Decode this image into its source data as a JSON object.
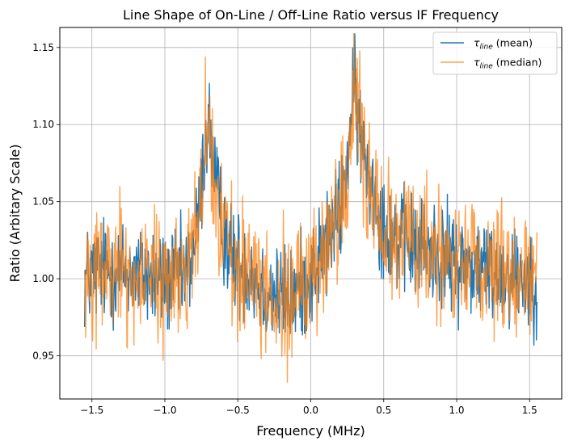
{
  "chart_data": {
    "type": "line",
    "title": "Line Shape of On-Line / Off-Line Ratio versus IF Frequency",
    "xlabel": "Frequency (MHz)",
    "ylabel": "Ratio (Arbitary Scale)",
    "xlim": [
      -1.72,
      1.72
    ],
    "ylim": [
      0.922,
      1.163
    ],
    "xticks": [
      -1.5,
      -1.0,
      -0.5,
      0.0,
      0.5,
      1.0,
      1.5
    ],
    "xtick_labels": [
      "−1.5",
      "−1.0",
      "−0.5",
      "0.0",
      "0.5",
      "1.0",
      "1.5"
    ],
    "yticks": [
      0.95,
      1.0,
      1.05,
      1.1,
      1.15
    ],
    "ytick_labels": [
      "0.95",
      "1.00",
      "1.05",
      "1.10",
      "1.15"
    ],
    "grid": true,
    "legend_position": "top-right",
    "series": [
      {
        "name": "τline (mean)",
        "name_symbol": "τ",
        "name_subscript": "line",
        "name_suffix": " (mean)",
        "color": "#1f77b4",
        "x": [
          -1.55,
          -1.45,
          -1.35,
          -1.25,
          -1.15,
          -1.05,
          -0.95,
          -0.85,
          -0.78,
          -0.74,
          -0.72,
          -0.7,
          -0.68,
          -0.65,
          -0.62,
          -0.58,
          -0.55,
          -0.5,
          -0.45,
          -0.4,
          -0.35,
          -0.3,
          -0.25,
          -0.2,
          -0.15,
          -0.1,
          -0.05,
          0.0,
          0.05,
          0.1,
          0.15,
          0.2,
          0.23,
          0.26,
          0.28,
          0.3,
          0.32,
          0.35,
          0.4,
          0.45,
          0.5,
          0.55,
          0.6,
          0.7,
          0.8,
          0.9,
          1.0,
          1.1,
          1.2,
          1.3,
          1.4,
          1.5,
          1.55
        ],
        "y": [
          1.0,
          1.006,
          1.005,
          1.004,
          1.003,
          0.999,
          0.998,
          1.003,
          1.03,
          1.07,
          1.095,
          1.1,
          1.085,
          1.06,
          1.04,
          1.028,
          1.015,
          1.01,
          1.007,
          1.005,
          0.995,
          0.992,
          0.99,
          0.988,
          0.986,
          0.99,
          0.996,
          1.002,
          1.012,
          1.022,
          1.03,
          1.045,
          1.06,
          1.085,
          1.11,
          1.12,
          1.11,
          1.085,
          1.07,
          1.05,
          1.035,
          1.03,
          1.025,
          1.02,
          1.018,
          1.015,
          1.01,
          1.008,
          1.006,
          1.004,
          1.003,
          1.001,
          1.001
        ]
      },
      {
        "name": "τline (median)",
        "name_symbol": "τ",
        "name_subscript": "line",
        "name_suffix": " (median)",
        "color": "#ff7f0e",
        "x": [
          -1.55,
          -1.45,
          -1.35,
          -1.25,
          -1.15,
          -1.05,
          -0.95,
          -0.85,
          -0.78,
          -0.74,
          -0.72,
          -0.7,
          -0.68,
          -0.65,
          -0.62,
          -0.58,
          -0.55,
          -0.5,
          -0.45,
          -0.4,
          -0.35,
          -0.3,
          -0.25,
          -0.2,
          -0.15,
          -0.1,
          -0.05,
          0.0,
          0.05,
          0.1,
          0.15,
          0.2,
          0.23,
          0.26,
          0.28,
          0.3,
          0.32,
          0.35,
          0.4,
          0.45,
          0.5,
          0.55,
          0.6,
          0.7,
          0.8,
          0.9,
          1.0,
          1.1,
          1.2,
          1.3,
          1.4,
          1.5,
          1.55
        ],
        "y": [
          1.0,
          1.006,
          1.005,
          1.004,
          1.003,
          0.999,
          0.998,
          1.003,
          1.03,
          1.07,
          1.095,
          1.1,
          1.085,
          1.06,
          1.04,
          1.028,
          1.015,
          1.01,
          1.007,
          1.005,
          0.995,
          0.992,
          0.99,
          0.988,
          0.986,
          0.99,
          0.996,
          1.002,
          1.012,
          1.022,
          1.03,
          1.045,
          1.06,
          1.085,
          1.11,
          1.12,
          1.11,
          1.085,
          1.07,
          1.05,
          1.035,
          1.03,
          1.025,
          1.02,
          1.018,
          1.015,
          1.01,
          1.008,
          1.006,
          1.004,
          1.003,
          1.001,
          1.001
        ]
      }
    ]
  }
}
